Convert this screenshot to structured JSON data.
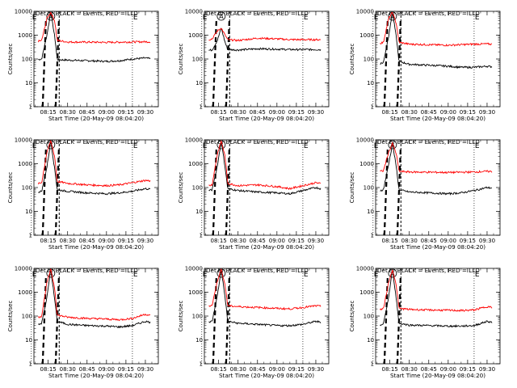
{
  "colors": {
    "events": "#000000",
    "lld": "#ff0000",
    "background": "#ffffff",
    "axis": "#000000"
  },
  "chart_data": [
    {
      "type": "line",
      "title": "Det 1f BLACK = Events, RED = LLD",
      "xlabel": "Start Time (20-May-09 08:04:20)",
      "ylabel": "Counts/sec",
      "yscale": "log",
      "ylim": [
        1,
        10000
      ],
      "xlim": [
        "08:04",
        "09:40"
      ],
      "x_ticks": [
        "08:15",
        "08:30",
        "08:45",
        "09:00",
        "09:15",
        "09:30"
      ],
      "y_ticks": [
        "1",
        "10",
        "100",
        "1000",
        "10000"
      ],
      "markers": [
        "E",
        "A",
        "E"
      ],
      "events_level": 90,
      "lld_level": 520,
      "peak": 9000,
      "flare_window": [
        "08:12",
        "08:22"
      ],
      "series": [
        {
          "name": "Events",
          "x": [
            "08:04",
            "08:10",
            "08:14",
            "08:17",
            "08:20",
            "08:22",
            "08:30",
            "08:45",
            "09:00",
            "09:10",
            "09:20",
            "09:30",
            "09:38"
          ],
          "y": [
            90,
            100,
            1000,
            9000,
            900,
            95,
            90,
            85,
            80,
            85,
            100,
            110,
            95
          ]
        },
        {
          "name": "LLD",
          "x": [
            "08:04",
            "08:10",
            "08:14",
            "08:17",
            "08:20",
            "08:22",
            "08:30",
            "08:45",
            "09:00",
            "09:10",
            "09:20",
            "09:30",
            "09:38"
          ],
          "y": [
            500,
            600,
            5000,
            9000,
            4000,
            600,
            520,
            510,
            500,
            510,
            520,
            530,
            520
          ]
        }
      ]
    },
    {
      "type": "line",
      "title": "Det 2f BLACK = Events, RED = LLD",
      "xlabel": "Start Time (20-May-09 08:04:20)",
      "ylabel": "Counts/sec",
      "yscale": "log",
      "ylim": [
        1,
        10000
      ],
      "xlim": [
        "08:04",
        "09:40"
      ],
      "x_ticks": [
        "08:15",
        "08:30",
        "08:45",
        "09:00",
        "09:15",
        "09:30"
      ],
      "y_ticks": [
        "1",
        "10",
        "100",
        "1000",
        "10000"
      ],
      "markers": [
        "E",
        "A",
        "E"
      ],
      "events_level": 230,
      "lld_level": 650,
      "peak": 2000,
      "flare_window": [
        "08:12",
        "08:22"
      ],
      "series": [
        {
          "name": "Events",
          "x": [
            "08:04",
            "08:10",
            "08:14",
            "08:17",
            "08:20",
            "08:22",
            "08:30",
            "08:45",
            "09:00",
            "09:10",
            "09:20",
            "09:30",
            "09:38"
          ],
          "y": [
            220,
            240,
            600,
            2000,
            500,
            250,
            240,
            270,
            260,
            250,
            250,
            250,
            240
          ]
        },
        {
          "name": "LLD",
          "x": [
            "08:04",
            "08:10",
            "08:14",
            "08:17",
            "08:20",
            "08:22",
            "08:30",
            "08:45",
            "09:00",
            "09:10",
            "09:20",
            "09:30",
            "09:38"
          ],
          "y": [
            600,
            700,
            1500,
            2000,
            1000,
            650,
            600,
            750,
            700,
            650,
            650,
            650,
            640
          ]
        }
      ]
    },
    {
      "type": "line",
      "title": "Det 3f BLACK = Events, RED = LLD",
      "xlabel": "Start Time (20-May-09 08:04:20)",
      "ylabel": "Counts/sec",
      "yscale": "log",
      "ylim": [
        1,
        10000
      ],
      "xlim": [
        "08:04",
        "09:40"
      ],
      "x_ticks": [
        "08:15",
        "08:30",
        "08:45",
        "09:00",
        "09:15",
        "09:30"
      ],
      "y_ticks": [
        "1",
        "10",
        "100",
        "1000",
        "10000"
      ],
      "markers": [
        "E",
        "A",
        "E"
      ],
      "events_level": 60,
      "lld_level": 420,
      "peak": 9000,
      "flare_window": [
        "08:12",
        "08:22"
      ],
      "series": [
        {
          "name": "Events",
          "x": [
            "08:04",
            "08:10",
            "08:14",
            "08:17",
            "08:20",
            "08:22",
            "08:30",
            "08:45",
            "09:00",
            "09:10",
            "09:20",
            "09:30",
            "09:38"
          ],
          "y": [
            60,
            70,
            900,
            9000,
            800,
            80,
            60,
            55,
            50,
            45,
            45,
            50,
            45
          ]
        },
        {
          "name": "LLD",
          "x": [
            "08:04",
            "08:10",
            "08:14",
            "08:17",
            "08:20",
            "08:22",
            "08:30",
            "08:45",
            "09:00",
            "09:10",
            "09:20",
            "09:30",
            "09:38"
          ],
          "y": [
            400,
            500,
            5000,
            9000,
            3000,
            500,
            420,
            400,
            380,
            400,
            420,
            430,
            410
          ]
        }
      ]
    },
    {
      "type": "line",
      "title": "Det 4f BLACK = Events, RED = LLD",
      "xlabel": "Start Time (20-May-09 08:04:20)",
      "ylabel": "Counts/sec",
      "yscale": "log",
      "ylim": [
        1,
        10000
      ],
      "xlim": [
        "08:04",
        "09:40"
      ],
      "x_ticks": [
        "08:15",
        "08:30",
        "08:45",
        "09:00",
        "09:15",
        "09:30"
      ],
      "y_ticks": [
        "1",
        "10",
        "100",
        "1000",
        "10000"
      ],
      "markers": [
        "E",
        "A",
        "E"
      ],
      "events_level": 70,
      "lld_level": 150,
      "peak": 9000,
      "flare_window": [
        "08:12",
        "08:22"
      ],
      "series": [
        {
          "name": "Events",
          "x": [
            "08:04",
            "08:10",
            "08:14",
            "08:17",
            "08:20",
            "08:22",
            "08:30",
            "08:45",
            "09:00",
            "09:10",
            "09:20",
            "09:30",
            "09:38"
          ],
          "y": [
            60,
            70,
            700,
            9000,
            600,
            80,
            70,
            60,
            55,
            60,
            70,
            90,
            80
          ]
        },
        {
          "name": "LLD",
          "x": [
            "08:04",
            "08:10",
            "08:14",
            "08:17",
            "08:20",
            "08:22",
            "08:30",
            "08:45",
            "09:00",
            "09:10",
            "09:20",
            "09:30",
            "09:38"
          ],
          "y": [
            130,
            160,
            3000,
            9000,
            2000,
            180,
            150,
            130,
            120,
            130,
            160,
            200,
            180
          ]
        }
      ]
    },
    {
      "type": "line",
      "title": "Det 5f BLACK = Events, RED = LLD",
      "xlabel": "Start Time (20-May-09 08:04:20)",
      "ylabel": "Counts/sec",
      "yscale": "log",
      "ylim": [
        1,
        10000
      ],
      "xlim": [
        "08:04",
        "09:40"
      ],
      "x_ticks": [
        "08:15",
        "08:30",
        "08:45",
        "09:00",
        "09:15",
        "09:30"
      ],
      "y_ticks": [
        "1",
        "10",
        "100",
        "1000",
        "10000"
      ],
      "markers": [
        "E",
        "A",
        "E"
      ],
      "events_level": 70,
      "lld_level": 120,
      "peak": 9000,
      "flare_window": [
        "08:12",
        "08:22"
      ],
      "series": [
        {
          "name": "Events",
          "x": [
            "08:04",
            "08:10",
            "08:14",
            "08:17",
            "08:20",
            "08:22",
            "08:30",
            "08:45",
            "09:00",
            "09:10",
            "09:20",
            "09:30",
            "09:38"
          ],
          "y": [
            70,
            80,
            800,
            9000,
            700,
            90,
            75,
            65,
            60,
            55,
            75,
            100,
            80
          ]
        },
        {
          "name": "LLD",
          "x": [
            "08:04",
            "08:10",
            "08:14",
            "08:17",
            "08:20",
            "08:22",
            "08:30",
            "08:45",
            "09:00",
            "09:10",
            "09:20",
            "09:30",
            "09:38"
          ],
          "y": [
            110,
            130,
            2500,
            9000,
            2000,
            150,
            120,
            130,
            110,
            90,
            120,
            160,
            130
          ]
        }
      ]
    },
    {
      "type": "line",
      "title": "Det 6f BLACK = Events, RED = LLD",
      "xlabel": "Start Time (20-May-09 08:04:20)",
      "ylabel": "Counts/sec",
      "yscale": "log",
      "ylim": [
        1,
        10000
      ],
      "xlim": [
        "08:04",
        "09:40"
      ],
      "x_ticks": [
        "08:15",
        "08:30",
        "08:45",
        "09:00",
        "09:15",
        "09:30"
      ],
      "y_ticks": [
        "1",
        "10",
        "100",
        "1000",
        "10000"
      ],
      "markers": [
        "E",
        "A",
        "E"
      ],
      "events_level": 70,
      "lld_level": 450,
      "peak": 7000,
      "flare_window": [
        "08:12",
        "08:22"
      ],
      "series": [
        {
          "name": "Events",
          "x": [
            "08:04",
            "08:10",
            "08:14",
            "08:17",
            "08:20",
            "08:22",
            "08:30",
            "08:45",
            "09:00",
            "09:10",
            "09:20",
            "09:30",
            "09:38"
          ],
          "y": [
            70,
            80,
            900,
            7000,
            700,
            80,
            65,
            60,
            55,
            60,
            75,
            100,
            90
          ]
        },
        {
          "name": "LLD",
          "x": [
            "08:04",
            "08:10",
            "08:14",
            "08:17",
            "08:20",
            "08:22",
            "08:30",
            "08:45",
            "09:00",
            "09:10",
            "09:20",
            "09:30",
            "09:38"
          ],
          "y": [
            450,
            500,
            3000,
            7000,
            2500,
            480,
            450,
            440,
            430,
            440,
            450,
            480,
            450
          ]
        }
      ]
    },
    {
      "type": "line",
      "title": "Det 7f BLACK = Events, RED = LLD",
      "xlabel": "Start Time (20-May-09 08:04:20)",
      "ylabel": "Counts/sec",
      "yscale": "log",
      "ylim": [
        1,
        10000
      ],
      "xlim": [
        "08:04",
        "09:40"
      ],
      "x_ticks": [
        "08:15",
        "08:30",
        "08:45",
        "09:00",
        "09:15",
        "09:30"
      ],
      "y_ticks": [
        "1",
        "10",
        "100",
        "1000",
        "10000"
      ],
      "markers": [
        "E",
        "A",
        "E"
      ],
      "events_level": 45,
      "lld_level": 90,
      "peak": 9000,
      "flare_window": [
        "08:12",
        "08:22"
      ],
      "series": [
        {
          "name": "Events",
          "x": [
            "08:04",
            "08:10",
            "08:14",
            "08:17",
            "08:20",
            "08:22",
            "08:30",
            "08:45",
            "09:00",
            "09:10",
            "09:20",
            "09:30",
            "09:38"
          ],
          "y": [
            40,
            50,
            600,
            9000,
            500,
            60,
            45,
            40,
            38,
            35,
            40,
            60,
            50
          ]
        },
        {
          "name": "LLD",
          "x": [
            "08:04",
            "08:10",
            "08:14",
            "08:17",
            "08:20",
            "08:22",
            "08:30",
            "08:45",
            "09:00",
            "09:10",
            "09:20",
            "09:30",
            "09:38"
          ],
          "y": [
            80,
            100,
            2500,
            9000,
            1500,
            110,
            90,
            80,
            75,
            70,
            80,
            120,
            90
          ]
        }
      ]
    },
    {
      "type": "line",
      "title": "Det 8f BLACK = Events, RED = LLD",
      "xlabel": "Start Time (20-May-09 08:04:20)",
      "ylabel": "Counts/sec",
      "yscale": "log",
      "ylim": [
        1,
        10000
      ],
      "xlim": [
        "08:04",
        "09:40"
      ],
      "x_ticks": [
        "08:15",
        "08:30",
        "08:45",
        "09:00",
        "09:15",
        "09:30"
      ],
      "y_ticks": [
        "1",
        "10",
        "100",
        "1000",
        "10000"
      ],
      "markers": [
        "E",
        "A",
        "E"
      ],
      "events_level": 50,
      "lld_level": 250,
      "peak": 9000,
      "flare_window": [
        "08:12",
        "08:22"
      ],
      "series": [
        {
          "name": "Events",
          "x": [
            "08:04",
            "08:10",
            "08:14",
            "08:17",
            "08:20",
            "08:22",
            "08:30",
            "08:45",
            "09:00",
            "09:10",
            "09:20",
            "09:30",
            "09:38"
          ],
          "y": [
            50,
            60,
            700,
            9000,
            600,
            60,
            50,
            45,
            40,
            40,
            45,
            60,
            50
          ]
        },
        {
          "name": "LLD",
          "x": [
            "08:04",
            "08:10",
            "08:14",
            "08:17",
            "08:20",
            "08:22",
            "08:30",
            "08:45",
            "09:00",
            "09:10",
            "09:20",
            "09:30",
            "09:38"
          ],
          "y": [
            250,
            280,
            3000,
            9000,
            2000,
            270,
            250,
            230,
            210,
            200,
            230,
            270,
            240
          ]
        }
      ]
    },
    {
      "type": "line",
      "title": "Det 9f BLACK = Events, RED = LLD",
      "xlabel": "Start Time (20-May-09 08:04:20)",
      "ylabel": "Counts/sec",
      "yscale": "log",
      "ylim": [
        1,
        10000
      ],
      "xlim": [
        "08:04",
        "09:40"
      ],
      "x_ticks": [
        "08:15",
        "08:30",
        "08:45",
        "09:00",
        "09:15",
        "09:30"
      ],
      "y_ticks": [
        "1",
        "10",
        "100",
        "1000",
        "10000"
      ],
      "markers": [
        "E",
        "A",
        "E"
      ],
      "events_level": 45,
      "lld_level": 200,
      "peak": 9000,
      "flare_window": [
        "08:12",
        "08:22"
      ],
      "series": [
        {
          "name": "Events",
          "x": [
            "08:04",
            "08:10",
            "08:14",
            "08:17",
            "08:20",
            "08:22",
            "08:30",
            "08:45",
            "09:00",
            "09:10",
            "09:20",
            "09:30",
            "09:38"
          ],
          "y": [
            40,
            45,
            600,
            9000,
            500,
            50,
            42,
            40,
            38,
            38,
            40,
            60,
            50
          ]
        },
        {
          "name": "LLD",
          "x": [
            "08:04",
            "08:10",
            "08:14",
            "08:17",
            "08:20",
            "08:22",
            "08:30",
            "08:45",
            "09:00",
            "09:10",
            "09:20",
            "09:30",
            "09:38"
          ],
          "y": [
            180,
            200,
            2500,
            9000,
            1800,
            210,
            190,
            180,
            175,
            170,
            180,
            250,
            210
          ]
        }
      ]
    }
  ]
}
